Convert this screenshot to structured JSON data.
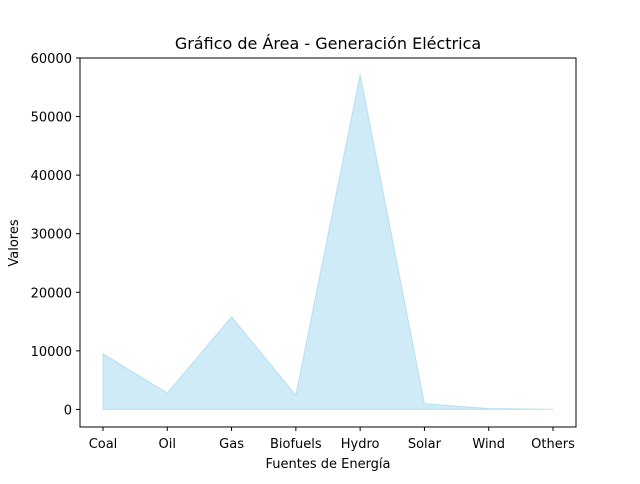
{
  "chart_data": {
    "type": "area",
    "title": "Gráfico de Área - Generación Eléctrica",
    "xlabel": "Fuentes de Energía",
    "ylabel": "Valores",
    "categories": [
      "Coal",
      "Oil",
      "Gas",
      "Biofuels",
      "Hydro",
      "Solar",
      "Wind",
      "Others"
    ],
    "values": [
      9500,
      2800,
      15800,
      2400,
      57200,
      1000,
      150,
      30
    ],
    "ylim": [
      -3000,
      60000
    ],
    "yticks": [
      0,
      10000,
      20000,
      30000,
      40000,
      50000,
      60000
    ],
    "ytick_labels": [
      "0",
      "10000",
      "20000",
      "30000",
      "40000",
      "50000",
      "60000"
    ],
    "grid": false,
    "colors": {
      "fill": "#87ceeb",
      "edge": "#87ceeb"
    }
  }
}
